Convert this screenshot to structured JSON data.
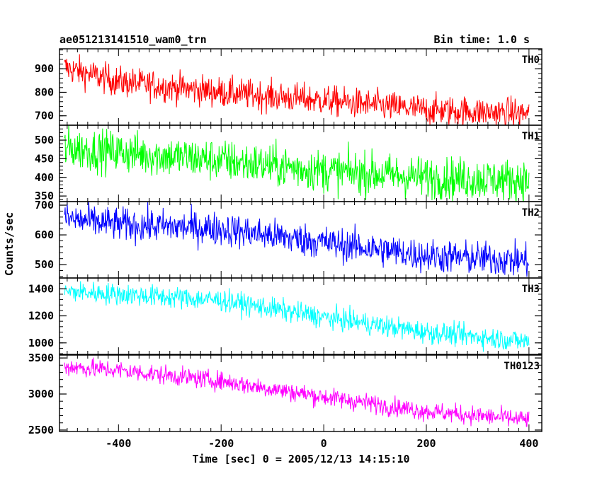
{
  "header": {
    "title": "ae051213141510_wam0_trn",
    "bin_time": "Bin time: 1.0 s"
  },
  "chart_data": {
    "type": "line",
    "title": "ae051213141510_wam0_trn",
    "subtitle": "Bin time: 1.0 s",
    "xlabel": "Time [sec] 0 = 2005/12/13 14:15:10",
    "ylabel": "Counts/sec",
    "xlim": [
      -515,
      425
    ],
    "x_ticks": [
      -400,
      -200,
      0,
      200,
      400
    ],
    "x_range": [
      -505,
      400
    ],
    "bin_time": 1.0,
    "grid": false,
    "panels": [
      {
        "name": "TH0",
        "color": "#ff0000",
        "ylim": [
          660,
          985
        ],
        "y_ticks": [
          700,
          800,
          900
        ],
        "trend": [
          [
            -505,
            905
          ],
          [
            -400,
            845
          ],
          [
            -200,
            800
          ],
          [
            0,
            765
          ],
          [
            200,
            725
          ],
          [
            400,
            710
          ]
        ],
        "noise": 32
      },
      {
        "name": "TH1",
        "color": "#00ff00",
        "ylim": [
          335,
          540
        ],
        "y_ticks": [
          350,
          400,
          450,
          500
        ],
        "trend": [
          [
            -505,
            478
          ],
          [
            -400,
            468
          ],
          [
            -200,
            445
          ],
          [
            0,
            418
          ],
          [
            200,
            400
          ],
          [
            400,
            392
          ]
        ],
        "noise": 28
      },
      {
        "name": "TH2",
        "color": "#0000ff",
        "ylim": [
          455,
          712
        ],
        "y_ticks": [
          500,
          600,
          700
        ],
        "trend": [
          [
            -505,
            655
          ],
          [
            -400,
            635
          ],
          [
            -200,
            620
          ],
          [
            0,
            575
          ],
          [
            200,
            530
          ],
          [
            400,
            512
          ]
        ],
        "noise": 28
      },
      {
        "name": "TH3",
        "color": "#00ffff",
        "ylim": [
          915,
          1480
        ],
        "y_ticks": [
          1000,
          1200,
          1400
        ],
        "trend": [
          [
            -505,
            1380
          ],
          [
            -400,
            1360
          ],
          [
            -200,
            1315
          ],
          [
            0,
            1190
          ],
          [
            200,
            1080
          ],
          [
            400,
            1010
          ]
        ],
        "noise": 40
      },
      {
        "name": "TH0123",
        "color": "#ff00ff",
        "ylim": [
          2480,
          3540
        ],
        "y_ticks": [
          2500,
          3000,
          3500
        ],
        "trend": [
          [
            -505,
            3380
          ],
          [
            -400,
            3330
          ],
          [
            -200,
            3180
          ],
          [
            0,
            2960
          ],
          [
            200,
            2760
          ],
          [
            400,
            2640
          ]
        ],
        "noise": 65
      }
    ]
  }
}
